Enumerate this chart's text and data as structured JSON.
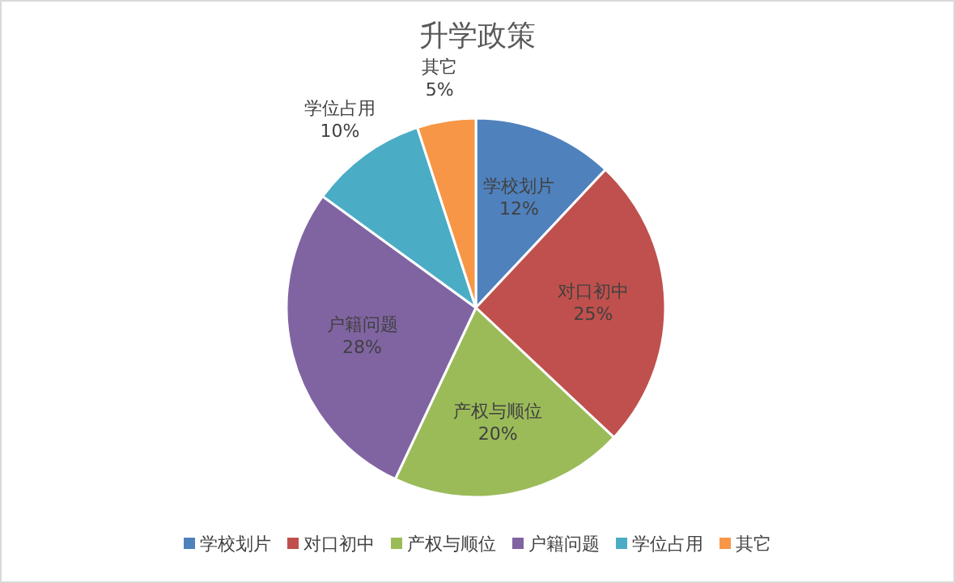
{
  "chart_data": {
    "type": "pie",
    "title": "升学政策",
    "categories": [
      "学校划片",
      "对口初中",
      "产权与顺位",
      "户籍问题",
      "学位占用",
      "其它"
    ],
    "values": [
      12,
      25,
      20,
      28,
      10,
      5
    ],
    "value_labels": [
      "12%",
      "25%",
      "20%",
      "28%",
      "10%",
      "5%"
    ],
    "colors": [
      "#4f81bd",
      "#c0504d",
      "#9bbb59",
      "#8064a2",
      "#4bacc6",
      "#f79646"
    ],
    "legend": "bottom"
  }
}
